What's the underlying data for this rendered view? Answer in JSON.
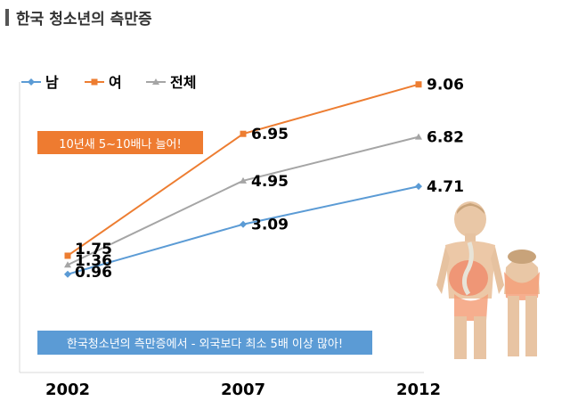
{
  "page_title": "한국 청소년의 측만증",
  "colors": {
    "male": "#5b9bd5",
    "female": "#ed7d31",
    "total": "#a5a5a5",
    "callout_orange": "#ee7b30",
    "callout_blue": "#5b9bd5"
  },
  "chart_data": {
    "type": "line",
    "title": "",
    "xlabel": "",
    "ylabel": "",
    "categories": [
      "2002",
      "2007",
      "2012"
    ],
    "ylim": [
      0,
      10
    ],
    "grid": false,
    "legend_position": "top-left",
    "series": [
      {
        "name": "남",
        "values": [
          0.96,
          3.09,
          4.71
        ],
        "labels": [
          "0.96",
          "3.09",
          "4.71"
        ],
        "marker": "diamond",
        "color": "#5b9bd5"
      },
      {
        "name": "여",
        "values": [
          1.75,
          6.95,
          9.06
        ],
        "labels": [
          "1.75",
          "6.95",
          "9.06"
        ],
        "marker": "square",
        "color": "#ed7d31"
      },
      {
        "name": "전체",
        "values": [
          1.36,
          4.95,
          6.82
        ],
        "labels": [
          "1.36",
          "4.95",
          "6.82"
        ],
        "marker": "triangle",
        "color": "#a5a5a5"
      }
    ],
    "annotations": [
      "10년새 5~10배나 늘어!",
      "한국청소년의 측만증에서 - 외국보다 최소 5배 이상 많아!"
    ]
  },
  "illustration": {
    "icon": "scoliosis-spine-illustration"
  }
}
